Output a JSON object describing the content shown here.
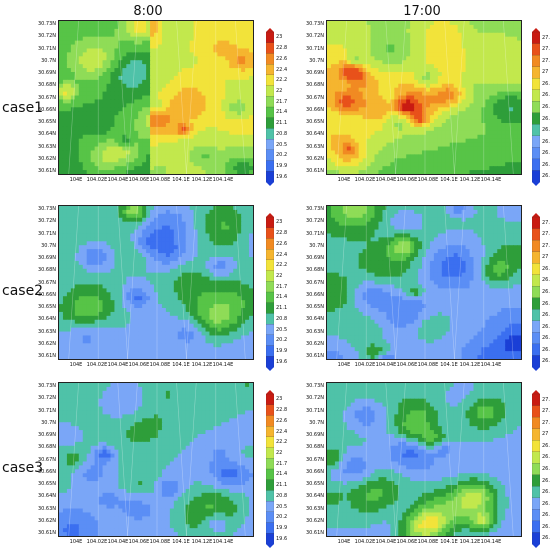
{
  "columns": [
    "8:00",
    "17:00"
  ],
  "rows": [
    "case1",
    "case2",
    "case3"
  ],
  "chart_data": {
    "type": "heatmap",
    "x_ticks": [
      "104E",
      "104.02E",
      "104.04E",
      "104.06E",
      "104.08E",
      "104.1E",
      "104.12E",
      "104.14E"
    ],
    "y_ticks": [
      "30.73N",
      "30.72N",
      "30.71N",
      "30.7N",
      "30.69N",
      "30.68N",
      "30.67N",
      "30.66N",
      "30.65N",
      "30.64N",
      "30.63N",
      "30.62N",
      "30.61N"
    ],
    "colormap": [
      "#1a3fd6",
      "#3b6ff0",
      "#5b8ef5",
      "#7aa6f7",
      "#4fc2a8",
      "#2e9e3a",
      "#57c447",
      "#8fdc57",
      "#c2e84d",
      "#f2e33a",
      "#f5b52f",
      "#f18a22",
      "#e8511a",
      "#c91b12"
    ],
    "panels": [
      {
        "case": "case1",
        "time": "8:00",
        "colorbar_ticks": [
          "23",
          "22.8",
          "22.6",
          "22.4",
          "22.2",
          "22",
          "21.7",
          "21.4",
          "21.1",
          "20.8",
          "20.5",
          "20.2",
          "19.9",
          "19.6"
        ],
        "vmin": 19.6,
        "vmax": 23
      },
      {
        "case": "case1",
        "time": "17:00",
        "colorbar_ticks": [
          "27.3",
          "27.2",
          "27.1",
          "27",
          "26.9",
          "26.8",
          "26.7",
          "26.6",
          "26.5",
          "26.4",
          "26.3",
          "26.2",
          "26.1"
        ],
        "vmin": 26.1,
        "vmax": 27.3
      },
      {
        "case": "case2",
        "time": "8:00",
        "colorbar_ticks": [
          "23",
          "22.8",
          "22.6",
          "22.4",
          "22.2",
          "22",
          "21.7",
          "21.4",
          "21.1",
          "20.8",
          "20.5",
          "20.2",
          "19.9",
          "19.6"
        ],
        "vmin": 19.6,
        "vmax": 23
      },
      {
        "case": "case2",
        "time": "17:00",
        "colorbar_ticks": [
          "27.3",
          "27.2",
          "27.1",
          "27",
          "26.9",
          "26.8",
          "26.7",
          "26.6",
          "26.5",
          "26.4",
          "26.3",
          "26.2",
          "26.1"
        ],
        "vmin": 26.1,
        "vmax": 27.3
      },
      {
        "case": "case3",
        "time": "8:00",
        "colorbar_ticks": [
          "23",
          "22.8",
          "22.6",
          "22.4",
          "22.2",
          "22",
          "21.7",
          "21.4",
          "21.1",
          "20.8",
          "20.5",
          "20.2",
          "19.9",
          "19.6"
        ],
        "vmin": 19.6,
        "vmax": 23
      },
      {
        "case": "case3",
        "time": "17:00",
        "colorbar_ticks": [
          "27.3",
          "27.2",
          "27.1",
          "27",
          "26.9",
          "26.8",
          "26.7",
          "26.6",
          "26.5",
          "26.4",
          "26.3",
          "26.2",
          "26.1"
        ],
        "vmin": 26.1,
        "vmax": 27.3
      }
    ]
  }
}
